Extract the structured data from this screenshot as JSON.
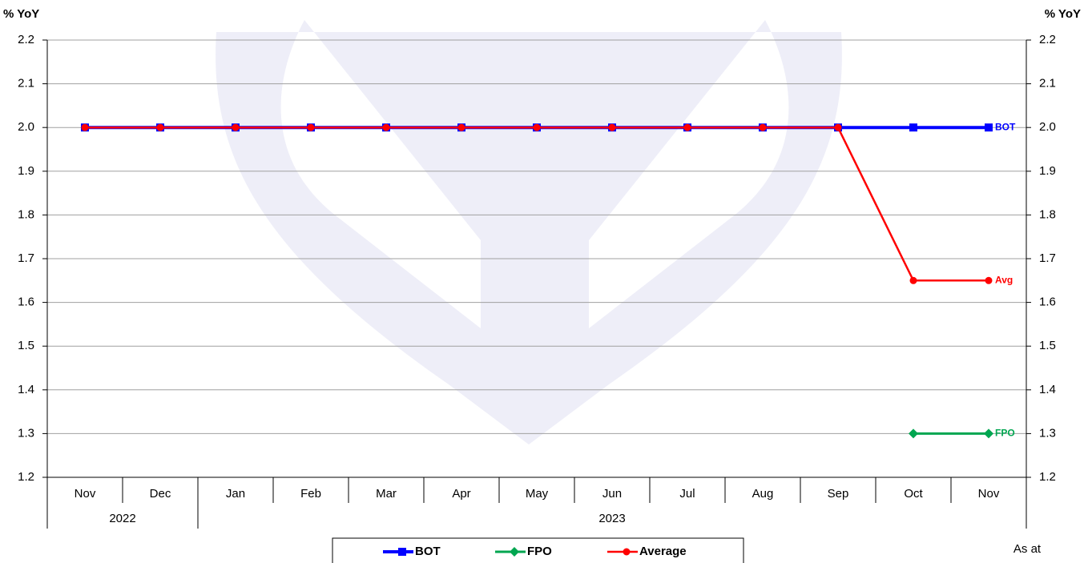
{
  "chart_data": {
    "type": "line",
    "y_axis_label": "% YoY",
    "y2_axis_label": "% YoY",
    "categories": [
      "Nov",
      "Dec",
      "Jan",
      "Feb",
      "Mar",
      "Apr",
      "May",
      "Jun",
      "Jul",
      "Aug",
      "Sep",
      "Oct",
      "Nov"
    ],
    "category_groups": [
      {
        "label": "2022",
        "count": 2
      },
      {
        "label": "2023",
        "count": 11
      }
    ],
    "series": [
      {
        "name": "BOT",
        "end_label": "BOT",
        "color": "#0000ff",
        "marker": "square",
        "values": [
          2,
          2,
          2,
          2,
          2,
          2,
          2,
          2,
          2,
          2,
          2,
          2,
          2
        ]
      },
      {
        "name": "FPO",
        "end_label": "FPO",
        "color": "#00a650",
        "marker": "diamond",
        "values": [
          null,
          null,
          null,
          null,
          null,
          null,
          null,
          null,
          null,
          null,
          null,
          1.3,
          1.3
        ]
      },
      {
        "name": "Average",
        "end_label": "Avg",
        "color": "#ff0000",
        "marker": "circle",
        "values": [
          2,
          2,
          2,
          2,
          2,
          2,
          2,
          2,
          2,
          2,
          2,
          1.65,
          1.65
        ]
      }
    ],
    "ylim": [
      1.2,
      2.2
    ],
    "yticks": [
      1.2,
      1.3,
      1.4,
      1.5,
      1.6,
      1.7,
      1.8,
      1.9,
      {
        "value": 2,
        "label": "2.0"
      },
      2.1,
      2.2
    ],
    "y2lim": [
      1.2,
      2.2
    ],
    "y2ticks": [
      1.2,
      1.3,
      1.4,
      1.5,
      1.6,
      1.7,
      1.8,
      1.9,
      {
        "value": 2,
        "label": "2.0"
      },
      2.1,
      2.2
    ],
    "grid": true,
    "legend": "bottom",
    "note": "As at"
  }
}
